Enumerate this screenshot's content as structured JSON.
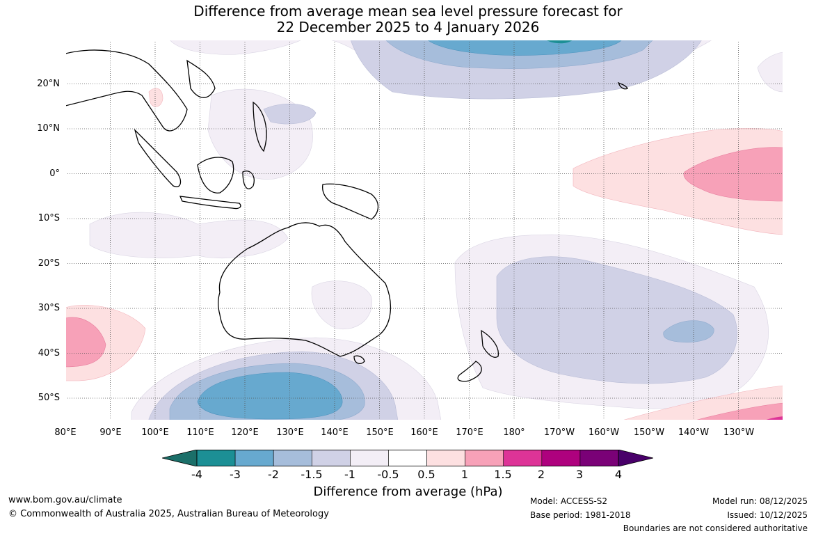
{
  "title": {
    "line1": "Difference from average mean sea level pressure forecast for",
    "line2": "22 December 2025 to 4 January 2026"
  },
  "lat_labels": [
    "20°N",
    "10°N",
    "0°",
    "10°S",
    "20°S",
    "30°S",
    "40°S",
    "50°S"
  ],
  "lon_labels": [
    "80°E",
    "90°E",
    "100°E",
    "110°E",
    "120°E",
    "130°E",
    "140°E",
    "150°E",
    "160°E",
    "170°E",
    "180°",
    "170°W",
    "160°W",
    "150°W",
    "140°W",
    "130°W"
  ],
  "legend": {
    "title": "Difference from average (hPa)",
    "ticks": [
      "-4",
      "-3",
      "-2",
      "-1.5",
      "-1",
      "-0.5",
      "0.5",
      "1",
      "1.5",
      "2",
      "3",
      "4"
    ],
    "colors": [
      "#1b6f69",
      "#1c8f95",
      "#67a9cf",
      "#a6bddb",
      "#d0d1e6",
      "#f3eef6",
      "#ffffff",
      "#fde0e1",
      "#f7a1b8",
      "#dd3497",
      "#ae017e",
      "#7a0177",
      "#49006a"
    ]
  },
  "footer": {
    "website": "www.bom.gov.au/climate",
    "copyright": "© Commonwealth of Australia 2025, Australian Bureau of Meteorology",
    "model": "Model: ACCESS-S2",
    "base_period": "Base period: 1981-2018",
    "model_run": "Model run: 08/12/2025",
    "issued": "Issued: 10/12/2025",
    "disclaimer": "Boundaries are not considered authoritative"
  }
}
